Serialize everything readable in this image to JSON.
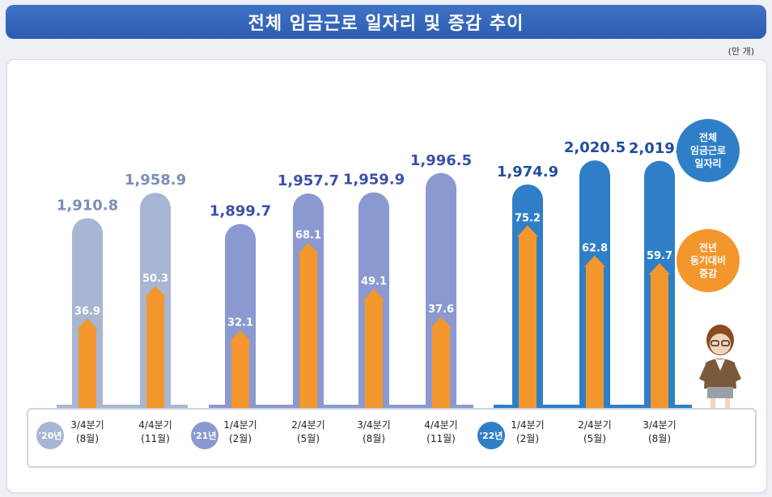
{
  "header": {
    "title": "전체 임금근로 일자리 및 증감 추이",
    "unit": "(만 개)"
  },
  "legend": {
    "total": "전체\n임금근로\n일자리",
    "change": "전년\n동기대비\n증감"
  },
  "groups": [
    {
      "label": "'20년",
      "color": "#a7b6d2"
    },
    {
      "label": "'21년",
      "color": "#8a99d0"
    },
    {
      "label": "'22년",
      "color": "#2e7fc8"
    }
  ],
  "colors": {
    "arrow": "#f3962c",
    "label_2020": "#7b8fb6",
    "label_2021": "#3d50a8",
    "label_2022": "#234e9b"
  },
  "chart_data": {
    "type": "bar",
    "title": "전체 임금근로 일자리 및 증감 추이",
    "unit": "(만 개)",
    "categories": [
      {
        "year": "'20년",
        "quarter": "3/4분기",
        "month": "(8월)"
      },
      {
        "year": "'20년",
        "quarter": "4/4분기",
        "month": "(11월)"
      },
      {
        "year": "'21년",
        "quarter": "1/4분기",
        "month": "(2월)"
      },
      {
        "year": "'21년",
        "quarter": "2/4분기",
        "month": "(5월)"
      },
      {
        "year": "'21년",
        "quarter": "3/4분기",
        "month": "(8월)"
      },
      {
        "year": "'21년",
        "quarter": "4/4분기",
        "month": "(11월)"
      },
      {
        "year": "'22년",
        "quarter": "1/4분기",
        "month": "(2월)"
      },
      {
        "year": "'22년",
        "quarter": "2/4분기",
        "month": "(5월)"
      },
      {
        "year": "'22년",
        "quarter": "3/4분기",
        "month": "(8월)"
      }
    ],
    "series": [
      {
        "name": "전체 임금근로 일자리",
        "values": [
          1910.8,
          1958.9,
          1899.7,
          1957.7,
          1959.9,
          1996.5,
          1974.9,
          2020.5,
          2019.6
        ],
        "labels": [
          "1,910.8",
          "1,958.9",
          "1,899.7",
          "1,957.7",
          "1,959.9",
          "1,996.5",
          "1,974.9",
          "2,020.5",
          "2,019.6"
        ]
      },
      {
        "name": "전년 동기대비 증감",
        "values": [
          36.9,
          50.3,
          32.1,
          68.1,
          49.1,
          37.6,
          75.2,
          62.8,
          59.7
        ],
        "labels": [
          "36.9",
          "50.3",
          "32.1",
          "68.1",
          "49.1",
          "37.6",
          "75.2",
          "62.8",
          "59.7"
        ]
      }
    ]
  }
}
